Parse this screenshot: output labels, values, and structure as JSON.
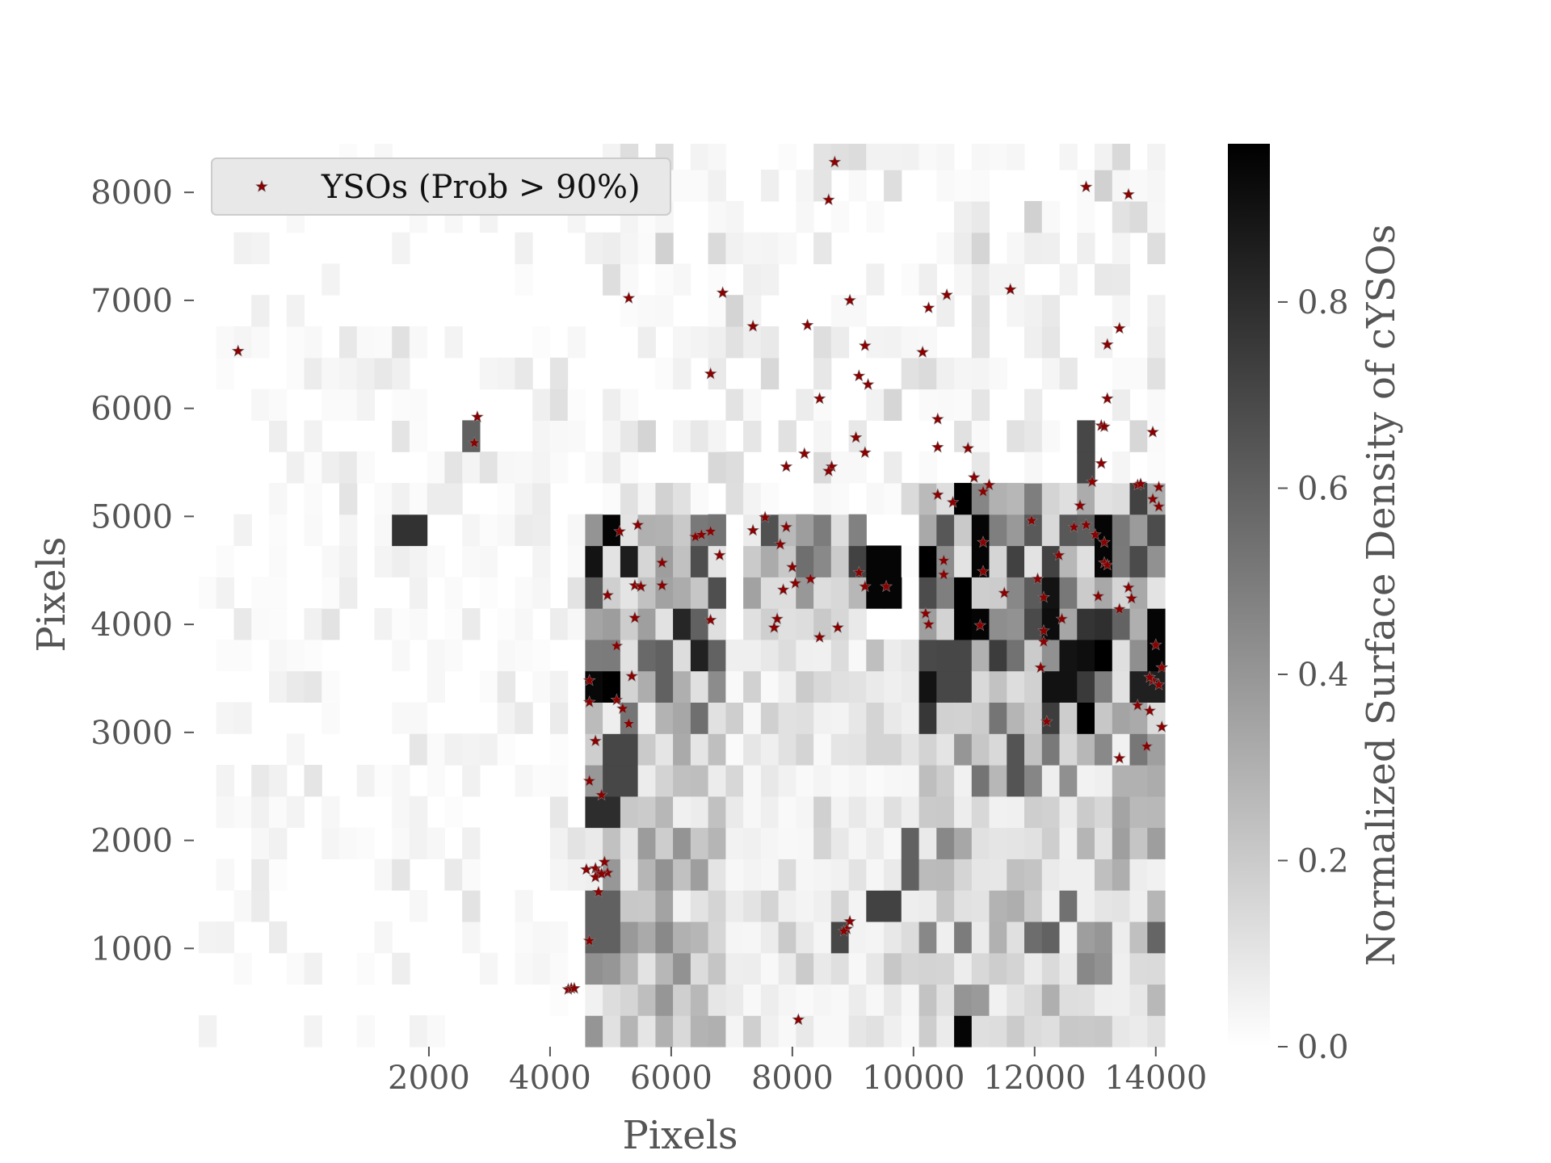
{
  "chart_data": {
    "type": "heatmap",
    "title": "",
    "xlabel": "Pixels",
    "ylabel": "Pixels",
    "xlim": [
      -1800,
      14150
    ],
    "ylim": [
      90,
      8450
    ],
    "x_ticks": [
      2000,
      4000,
      6000,
      8000,
      10000,
      12000,
      14000
    ],
    "y_ticks": [
      1000,
      2000,
      3000,
      4000,
      5000,
      6000,
      7000,
      8000
    ],
    "x_tick_labels": [
      "2000",
      "4000",
      "6000",
      "8000",
      "10000",
      "12000",
      "14000"
    ],
    "y_tick_labels": [
      "1000",
      "2000",
      "3000",
      "4000",
      "5000",
      "6000",
      "7000",
      "8000"
    ],
    "grid": false,
    "colormap": "gray_r",
    "colorbar": {
      "label": "Normalized Surface Density of cYSOs",
      "range": [
        0.0,
        0.97
      ],
      "ticks": [
        0.0,
        0.2,
        0.4,
        0.6,
        0.8
      ],
      "tick_labels": [
        "0.0",
        "0.2",
        "0.4",
        "0.6",
        "0.8"
      ]
    },
    "heatmap": {
      "x_range": [
        -1800,
        14150
      ],
      "y_range": [
        90,
        8450
      ],
      "cell_size": 290,
      "hotspots": [
        {
          "x": 5050,
          "y": 4900,
          "value": 0.95
        },
        {
          "x": 11150,
          "y": 4750,
          "value": 0.95
        },
        {
          "x": 11100,
          "y": 4000,
          "value": 0.95
        },
        {
          "x": 12300,
          "y": 4050,
          "value": 0.92
        },
        {
          "x": 13150,
          "y": 4750,
          "value": 0.95
        },
        {
          "x": 14000,
          "y": 3800,
          "value": 0.95
        },
        {
          "x": 12350,
          "y": 3450,
          "value": 0.9
        },
        {
          "x": 13850,
          "y": 3450,
          "value": 0.85
        },
        {
          "x": 9450,
          "y": 4400,
          "value": 0.95
        },
        {
          "x": 10300,
          "y": 4550,
          "value": 0.85
        },
        {
          "x": 10850,
          "y": 150,
          "value": 0.95
        },
        {
          "x": 1700,
          "y": 4900,
          "value": 0.78
        },
        {
          "x": 4850,
          "y": 2300,
          "value": 0.8
        },
        {
          "x": 5100,
          "y": 2700,
          "value": 0.7
        },
        {
          "x": 12850,
          "y": 5600,
          "value": 0.7
        },
        {
          "x": 9450,
          "y": 1450,
          "value": 0.72
        },
        {
          "x": 8750,
          "y": 1150,
          "value": 0.7
        },
        {
          "x": 10000,
          "y": 1900,
          "value": 0.6
        },
        {
          "x": 10600,
          "y": 3600,
          "value": 0.7
        },
        {
          "x": 11750,
          "y": 2650,
          "value": 0.65
        },
        {
          "x": 2700,
          "y": 5700,
          "value": 0.6
        },
        {
          "x": 6400,
          "y": 4000,
          "value": 0.6
        },
        {
          "x": 5900,
          "y": 3550,
          "value": 0.6
        },
        {
          "x": 4850,
          "y": 1200,
          "value": 0.6
        }
      ],
      "dense_regions": [
        {
          "x": [
            4500,
            6900
          ],
          "y": [
            3400,
            5000
          ],
          "mean": 0.4
        },
        {
          "x": [
            4500,
            6800
          ],
          "y": [
            200,
            3400
          ],
          "mean": 0.2
        },
        {
          "x": [
            7100,
            9100
          ],
          "y": [
            3800,
            5000
          ],
          "mean": 0.3
        },
        {
          "x": [
            10000,
            14150
          ],
          "y": [
            3000,
            5300
          ],
          "mean": 0.42
        },
        {
          "x": [
            10000,
            14150
          ],
          "y": [
            150,
            3000
          ],
          "mean": 0.2
        },
        {
          "x": [
            6800,
            10000
          ],
          "y": [
            150,
            3800
          ],
          "mean": 0.08
        },
        {
          "x": [
            5000,
            14150
          ],
          "y": [
            5000,
            8400
          ],
          "mean": 0.06
        },
        {
          "x": [
            -1500,
            4500
          ],
          "y": [
            800,
            6800
          ],
          "mean": 0.04
        }
      ]
    },
    "series": [
      {
        "name": "YSOs (Prob > 90%)",
        "marker": "star",
        "color": "#8b0000",
        "points": [
          [
            -1150,
            6530
          ],
          [
            2800,
            5920
          ],
          [
            2750,
            5680
          ],
          [
            5300,
            7020
          ],
          [
            6850,
            7070
          ],
          [
            7350,
            6760
          ],
          [
            8250,
            6770
          ],
          [
            8950,
            7000
          ],
          [
            6650,
            6320
          ],
          [
            9200,
            6580
          ],
          [
            9100,
            6300
          ],
          [
            9250,
            6220
          ],
          [
            8450,
            6090
          ],
          [
            8700,
            8280
          ],
          [
            8600,
            7930
          ],
          [
            12850,
            8050
          ],
          [
            13550,
            7980
          ],
          [
            10150,
            6520
          ],
          [
            10250,
            6930
          ],
          [
            10550,
            7050
          ],
          [
            11600,
            7100
          ],
          [
            13200,
            6590
          ],
          [
            13400,
            6740
          ],
          [
            13200,
            6090
          ],
          [
            13100,
            5840
          ],
          [
            13150,
            5830
          ],
          [
            10400,
            5900
          ],
          [
            10400,
            5640
          ],
          [
            10900,
            5630
          ],
          [
            11000,
            5360
          ],
          [
            11150,
            5230
          ],
          [
            11250,
            5290
          ],
          [
            10650,
            5130
          ],
          [
            10400,
            5200
          ],
          [
            13100,
            5490
          ],
          [
            12950,
            5320
          ],
          [
            13700,
            5290
          ],
          [
            13750,
            5300
          ],
          [
            13950,
            5780
          ],
          [
            13950,
            5160
          ],
          [
            14050,
            5270
          ],
          [
            14050,
            5090
          ],
          [
            8650,
            5460
          ],
          [
            8600,
            5420
          ],
          [
            7900,
            5460
          ],
          [
            8200,
            5580
          ],
          [
            9050,
            5730
          ],
          [
            9200,
            5590
          ],
          [
            5150,
            4860
          ],
          [
            5450,
            4920
          ],
          [
            6400,
            4810
          ],
          [
            6500,
            4830
          ],
          [
            6650,
            4860
          ],
          [
            6800,
            4640
          ],
          [
            7350,
            4870
          ],
          [
            7550,
            4990
          ],
          [
            7800,
            4740
          ],
          [
            7900,
            4900
          ],
          [
            5850,
            4570
          ],
          [
            8000,
            4530
          ],
          [
            8300,
            4420
          ],
          [
            8050,
            4380
          ],
          [
            7850,
            4320
          ],
          [
            9100,
            4480
          ],
          [
            9200,
            4350
          ],
          [
            9550,
            4350
          ],
          [
            10500,
            4590
          ],
          [
            10500,
            4460
          ],
          [
            11150,
            4760
          ],
          [
            11150,
            4490
          ],
          [
            11950,
            4960
          ],
          [
            12050,
            4420
          ],
          [
            12400,
            4640
          ],
          [
            12650,
            4900
          ],
          [
            12750,
            5100
          ],
          [
            12850,
            4920
          ],
          [
            13000,
            4830
          ],
          [
            13150,
            4760
          ],
          [
            13150,
            4570
          ],
          [
            13200,
            4550
          ],
          [
            13050,
            4260
          ],
          [
            13550,
            4340
          ],
          [
            13600,
            4240
          ],
          [
            13400,
            4140
          ],
          [
            12450,
            4050
          ],
          [
            12150,
            4250
          ],
          [
            11500,
            4290
          ],
          [
            5400,
            4360
          ],
          [
            5500,
            4350
          ],
          [
            5850,
            4360
          ],
          [
            4950,
            4270
          ],
          [
            5400,
            4060
          ],
          [
            6650,
            4040
          ],
          [
            7750,
            4050
          ],
          [
            7700,
            3970
          ],
          [
            8450,
            3880
          ],
          [
            8750,
            3970
          ],
          [
            10200,
            4100
          ],
          [
            10250,
            4000
          ],
          [
            11100,
            3990
          ],
          [
            12150,
            3940
          ],
          [
            12150,
            3840
          ],
          [
            5100,
            3800
          ],
          [
            5350,
            3520
          ],
          [
            4650,
            3480
          ],
          [
            4650,
            3280
          ],
          [
            5100,
            3300
          ],
          [
            5200,
            3220
          ],
          [
            5300,
            3080
          ],
          [
            4750,
            2920
          ],
          [
            12100,
            3600
          ],
          [
            12200,
            3100
          ],
          [
            13700,
            3250
          ],
          [
            13900,
            3200
          ],
          [
            13950,
            3480
          ],
          [
            14050,
            3440
          ],
          [
            14100,
            3600
          ],
          [
            13900,
            3510
          ],
          [
            14100,
            3050
          ],
          [
            13850,
            2870
          ],
          [
            13400,
            2760
          ],
          [
            14000,
            3810
          ],
          [
            4650,
            2550
          ],
          [
            4850,
            2420
          ],
          [
            4600,
            1730
          ],
          [
            4750,
            1740
          ],
          [
            4800,
            1700
          ],
          [
            4750,
            1660
          ],
          [
            4900,
            1800
          ],
          [
            4950,
            1700
          ],
          [
            4800,
            1520
          ],
          [
            4850,
            1690
          ],
          [
            4650,
            1070
          ],
          [
            8950,
            1250
          ],
          [
            8900,
            1180
          ],
          [
            8850,
            1160
          ],
          [
            4300,
            620
          ],
          [
            4350,
            630
          ],
          [
            4400,
            630
          ],
          [
            8100,
            340
          ]
        ]
      }
    ],
    "legend": {
      "position": "upper-left",
      "entries": [
        "YSOs (Prob > 90%)"
      ]
    }
  }
}
